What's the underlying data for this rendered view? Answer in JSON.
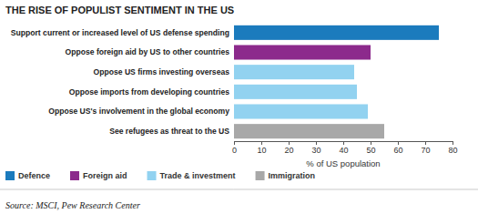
{
  "chart_data": {
    "type": "bar",
    "orientation": "horizontal",
    "title": "THE RISE OF POPULIST SENTIMENT IN THE US",
    "source": "Source: MSCI, Pew Research Center",
    "xlabel": "% of US population",
    "categories": [
      "Support current or increased level of US defense spending",
      "Oppose foreign aid by US to other countries",
      "Oppose US firms investing overseas",
      "Oppose imports from developing countries",
      "Oppose US's involvement in the global economy",
      "See refugees as threat to the US"
    ],
    "series": [
      {
        "name": "Defence",
        "color": "#1b7bbd",
        "values": [
          75,
          null,
          null,
          null,
          null,
          null
        ]
      },
      {
        "name": "Foreign aid",
        "color": "#8c2a8c",
        "values": [
          null,
          50,
          null,
          null,
          null,
          null
        ]
      },
      {
        "name": "Trade & investment",
        "color": "#92d2f0",
        "values": [
          null,
          null,
          44,
          45,
          49,
          null
        ]
      },
      {
        "name": "Immigration",
        "color": "#a8a8a8",
        "values": [
          null,
          null,
          null,
          null,
          null,
          55
        ]
      }
    ],
    "xlim": [
      0,
      80
    ],
    "xticks": [
      0,
      10,
      20,
      30,
      40,
      50,
      60,
      70,
      80
    ],
    "grid": false,
    "legend": "bottom"
  }
}
